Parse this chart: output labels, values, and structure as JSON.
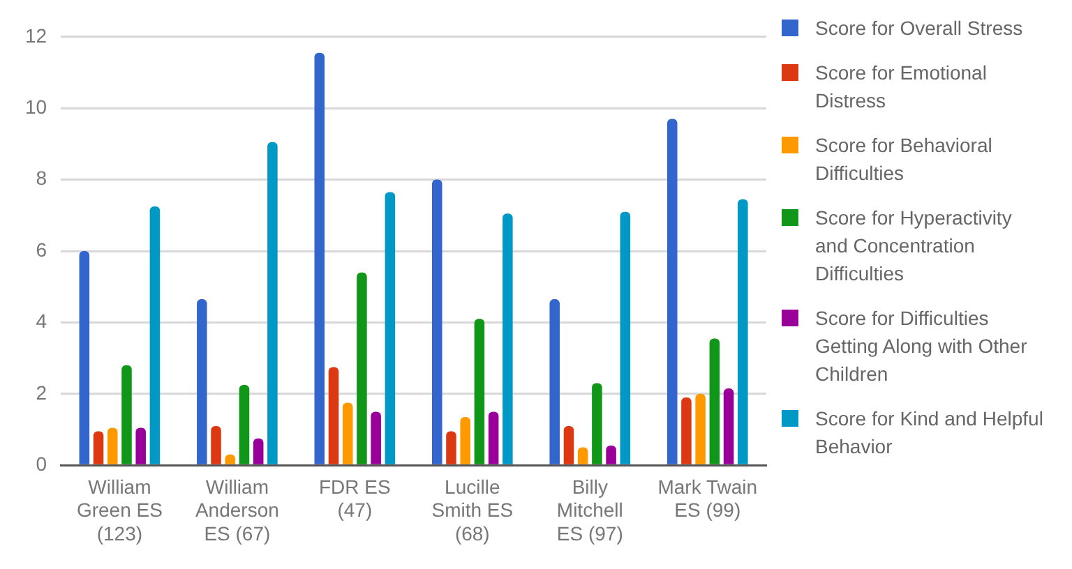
{
  "chart_data": {
    "type": "bar",
    "categories": [
      "William Green ES (123)",
      "William Anderson ES (67)",
      "FDR ES (47)",
      "Lucille Smith ES (68)",
      "Billy Mitchell ES (97)",
      "Mark Twain ES (99)"
    ],
    "series": [
      {
        "name": "Score for Overall Stress",
        "color": "#3366cc",
        "values": [
          6.0,
          4.65,
          11.55,
          8.0,
          4.65,
          9.7
        ]
      },
      {
        "name": "Score for Emotional Distress",
        "color": "#dc3912",
        "values": [
          0.95,
          1.1,
          2.75,
          0.95,
          1.1,
          1.9
        ]
      },
      {
        "name": "Score for Behavioral Difficulties",
        "color": "#ff9900",
        "values": [
          1.05,
          0.3,
          1.75,
          1.35,
          0.5,
          2.0
        ]
      },
      {
        "name": "Score for Hyperactivity and Concentration Difficulties",
        "color": "#109618",
        "values": [
          2.8,
          2.25,
          5.4,
          4.1,
          2.3,
          3.55
        ]
      },
      {
        "name": "Score for Difficulties Getting Along with Other Children",
        "color": "#990099",
        "values": [
          1.05,
          0.75,
          1.5,
          1.5,
          0.55,
          2.15
        ]
      },
      {
        "name": "Score for Kind and Helpful Behavior",
        "color": "#0099c6",
        "values": [
          7.25,
          9.05,
          7.65,
          7.05,
          7.1,
          7.45
        ]
      }
    ],
    "ylim": [
      0,
      12
    ],
    "yticks": [
      0,
      2,
      4,
      6,
      8,
      10,
      12
    ],
    "grid": "y",
    "legend": "right"
  }
}
